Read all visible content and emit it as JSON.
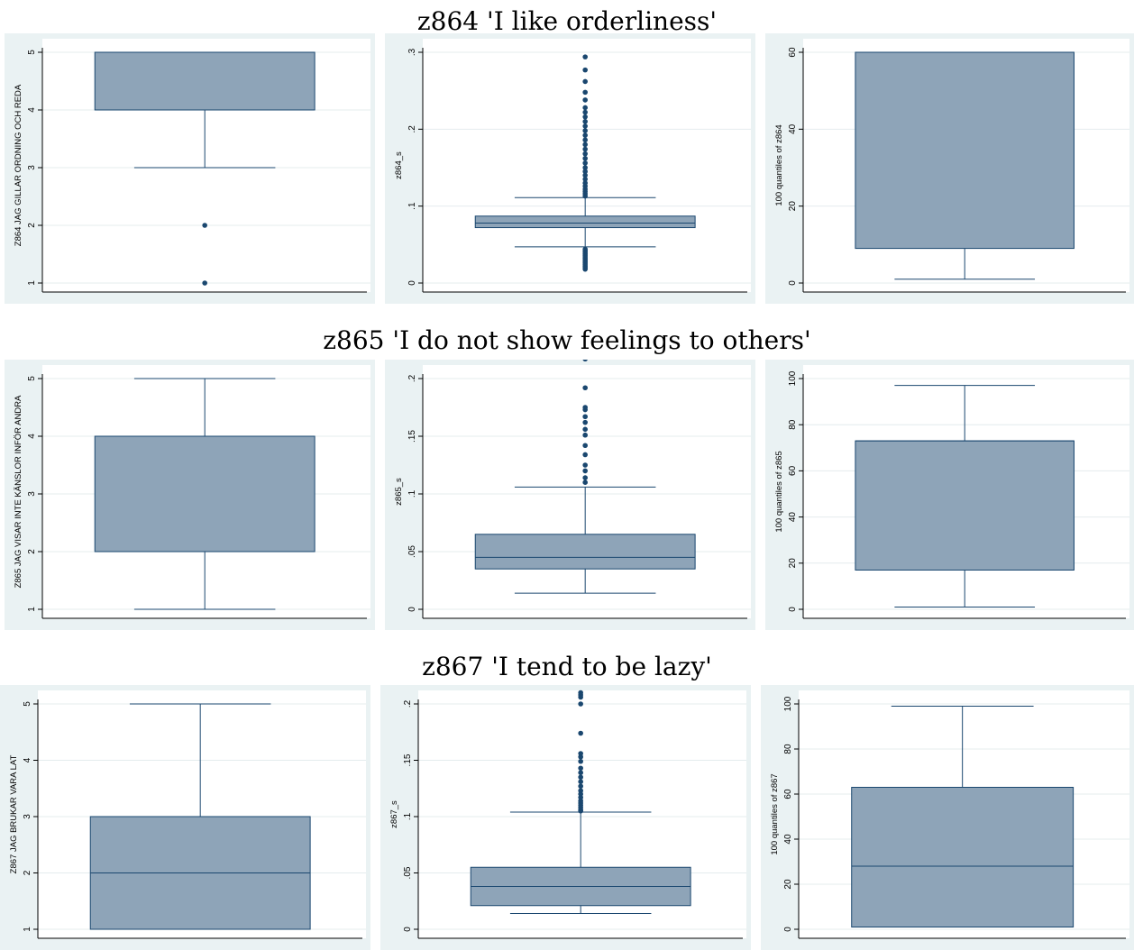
{
  "colors": {
    "panel_bg": "#eaf2f3",
    "plot_bg": "#ffffff",
    "box_fill": "#8ea4b8",
    "box_stroke": "#1a476f",
    "whisker": "#1a476f",
    "outlier": "#1a476f",
    "grid": "#eaf2f3",
    "axis": "#000000"
  },
  "rows": [
    {
      "title": "z864 'I like orderliness'"
    },
    {
      "title": "z865 'I do not show feelings to others'"
    },
    {
      "title": "z867 'I tend to be lazy'"
    }
  ],
  "chart_data": [
    {
      "type": "box",
      "ylabel": "Z864 JAG GILLAR ORDNING OCH REDA",
      "ylim": [
        1,
        5
      ],
      "yticks": [
        1,
        2,
        3,
        4,
        5
      ],
      "yticklabels": [
        "1",
        "2",
        "3",
        "4",
        "5"
      ],
      "box": {
        "lower_whisker": 3,
        "q1": 4,
        "median": 5,
        "q3": 5,
        "upper_whisker": 5
      },
      "outliers": [
        2,
        1
      ],
      "grid": true
    },
    {
      "type": "box",
      "ylabel": "z864_s",
      "ylim": [
        0,
        0.3
      ],
      "yticks": [
        0,
        0.1,
        0.2,
        0.3
      ],
      "yticklabels": [
        "0",
        ".1",
        ".2",
        ".3"
      ],
      "box": {
        "lower_whisker": 0.047,
        "q1": 0.072,
        "median": 0.078,
        "q3": 0.087,
        "upper_whisker": 0.111
      },
      "outliers": [
        0.018,
        0.02,
        0.022,
        0.024,
        0.026,
        0.028,
        0.03,
        0.032,
        0.034,
        0.036,
        0.038,
        0.04,
        0.042,
        0.044,
        0.113,
        0.116,
        0.119,
        0.122,
        0.126,
        0.13,
        0.135,
        0.14,
        0.145,
        0.15,
        0.156,
        0.162,
        0.168,
        0.174,
        0.18,
        0.186,
        0.192,
        0.198,
        0.204,
        0.21,
        0.216,
        0.222,
        0.228,
        0.238,
        0.248,
        0.262,
        0.277,
        0.294
      ],
      "grid": true
    },
    {
      "type": "box",
      "ylabel": "100 quantiles of z864",
      "ylim": [
        0,
        60
      ],
      "yticks": [
        0,
        20,
        40,
        60
      ],
      "yticklabels": [
        "0",
        "20",
        "40",
        "60"
      ],
      "box": {
        "lower_whisker": 1,
        "q1": 9,
        "median": 60,
        "q3": 60,
        "upper_whisker": 60
      },
      "outliers": [],
      "grid": true
    },
    {
      "type": "box",
      "ylabel": "Z865 JAG VISAR INTE KÄNSLOR INFÖR ANDRA",
      "ylim": [
        1,
        5
      ],
      "yticks": [
        1,
        2,
        3,
        4,
        5
      ],
      "yticklabels": [
        "1",
        "2",
        "3",
        "4",
        "5"
      ],
      "box": {
        "lower_whisker": 1,
        "q1": 2,
        "median": 4,
        "q3": 4,
        "upper_whisker": 5
      },
      "outliers": [],
      "grid": true
    },
    {
      "type": "box",
      "ylabel": "z865_s",
      "ylim": [
        0,
        0.2
      ],
      "yticks": [
        0,
        0.05,
        0.1,
        0.15,
        0.2
      ],
      "yticklabels": [
        "0",
        ".05",
        ".1",
        ".15",
        ".2"
      ],
      "box": {
        "lower_whisker": 0.014,
        "q1": 0.035,
        "median": 0.045,
        "q3": 0.065,
        "upper_whisker": 0.106
      },
      "outliers": [
        0.11,
        0.114,
        0.12,
        0.125,
        0.134,
        0.142,
        0.151,
        0.156,
        0.162,
        0.167,
        0.173,
        0.175,
        0.192,
        0.217
      ],
      "grid": true
    },
    {
      "type": "box",
      "ylabel": "100 quantiles of z865",
      "ylim": [
        0,
        100
      ],
      "yticks": [
        0,
        20,
        40,
        60,
        80,
        100
      ],
      "yticklabels": [
        "0",
        "20",
        "40",
        "60",
        "80",
        "100"
      ],
      "box": {
        "lower_whisker": 1,
        "q1": 17,
        "median": 73,
        "q3": 73,
        "upper_whisker": 97
      },
      "outliers": [],
      "grid": true
    },
    {
      "type": "box",
      "ylabel": "Z867 JAG BRUKAR VARA LAT",
      "ylim": [
        1,
        5
      ],
      "yticks": [
        1,
        2,
        3,
        4,
        5
      ],
      "yticklabels": [
        "1",
        "2",
        "3",
        "4",
        "5"
      ],
      "box": {
        "lower_whisker": 1,
        "q1": 1,
        "median": 2,
        "q3": 3,
        "upper_whisker": 5
      },
      "outliers": [],
      "grid": true
    },
    {
      "type": "box",
      "ylabel": "z867_s",
      "ylim": [
        0,
        0.2
      ],
      "yticks": [
        0,
        0.05,
        0.1,
        0.15,
        0.2
      ],
      "yticklabels": [
        "0",
        ".05",
        ".1",
        ".15",
        ".2"
      ],
      "box": {
        "lower_whisker": 0.014,
        "q1": 0.021,
        "median": 0.038,
        "q3": 0.055,
        "upper_whisker": 0.104
      },
      "outliers": [
        0.105,
        0.106,
        0.108,
        0.11,
        0.112,
        0.114,
        0.117,
        0.12,
        0.123,
        0.127,
        0.131,
        0.135,
        0.139,
        0.143,
        0.149,
        0.153,
        0.156,
        0.174,
        0.2,
        0.206,
        0.208,
        0.21
      ],
      "grid": true
    },
    {
      "type": "box",
      "ylabel": "100 quantiles of z867",
      "ylim": [
        0,
        100
      ],
      "yticks": [
        0,
        20,
        40,
        60,
        80,
        100
      ],
      "yticklabels": [
        "0",
        "20",
        "40",
        "60",
        "80",
        "100"
      ],
      "box": {
        "lower_whisker": 1,
        "q1": 1,
        "median": 28,
        "q3": 63,
        "upper_whisker": 99
      },
      "outliers": [],
      "grid": true
    }
  ]
}
